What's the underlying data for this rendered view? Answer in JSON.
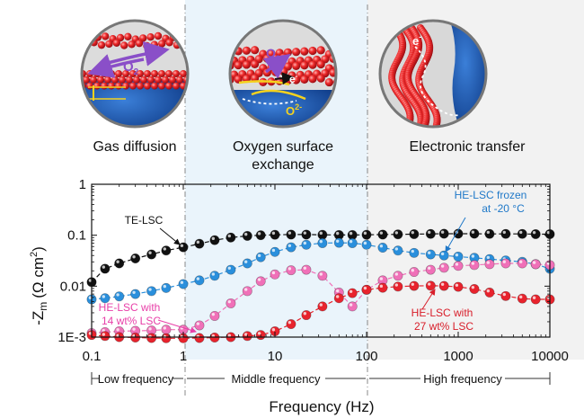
{
  "chart_data": {
    "type": "line",
    "title": "",
    "xlabel": "Frequency (Hz)",
    "ylabel_main": "-Z",
    "ylabel_sub": "m",
    "ylabel_unit_pre": "(Ω cm",
    "ylabel_unit_sup": "2",
    "ylabel_unit_post": ")",
    "xscale": "log",
    "yscale": "log",
    "xlim": [
      0.1,
      10000
    ],
    "ylim": [
      0.001,
      1
    ],
    "x_ticks": [
      {
        "v": 0.1,
        "label": "0.1"
      },
      {
        "v": 1,
        "label": "1"
      },
      {
        "v": 10,
        "label": "10"
      },
      {
        "v": 100,
        "label": "100"
      },
      {
        "v": 1000,
        "label": "1000"
      },
      {
        "v": 10000,
        "label": "10000"
      }
    ],
    "y_ticks": [
      {
        "v": 1,
        "label": "1"
      },
      {
        "v": 0.1,
        "label": "0.1"
      },
      {
        "v": 0.01,
        "label": "0.01"
      },
      {
        "v": 0.001,
        "label": "1E-3"
      }
    ],
    "series": [
      {
        "color": "#111111",
        "x": [
          0.1,
          0.14,
          0.2,
          0.3,
          0.45,
          0.65,
          1,
          1.5,
          2.2,
          3.3,
          5,
          7,
          10,
          15,
          22,
          33,
          50,
          70,
          100,
          150,
          220,
          330,
          500,
          700,
          1000,
          1500,
          2200,
          3300,
          5000,
          7000,
          10000
        ],
        "y": [
          0.012,
          0.022,
          0.028,
          0.035,
          0.042,
          0.05,
          0.058,
          0.068,
          0.08,
          0.09,
          0.097,
          0.1,
          0.102,
          0.103,
          0.103,
          0.102,
          0.101,
          0.101,
          0.102,
          0.103,
          0.104,
          0.105,
          0.106,
          0.107,
          0.107,
          0.107,
          0.106,
          0.106,
          0.106,
          0.105,
          0.105
        ]
      },
      {
        "color": "#2a8fdc",
        "x": [
          0.1,
          0.14,
          0.2,
          0.3,
          0.45,
          0.65,
          1,
          1.5,
          2.2,
          3.3,
          5,
          7,
          10,
          15,
          22,
          33,
          50,
          70,
          100,
          150,
          220,
          330,
          500,
          700,
          1000,
          1500,
          2200,
          3300,
          5000,
          7000,
          10000
        ],
        "y": [
          0.0055,
          0.0058,
          0.0063,
          0.007,
          0.008,
          0.0092,
          0.011,
          0.013,
          0.016,
          0.021,
          0.028,
          0.037,
          0.047,
          0.058,
          0.065,
          0.07,
          0.071,
          0.07,
          0.065,
          0.057,
          0.05,
          0.045,
          0.042,
          0.04,
          0.038,
          0.036,
          0.034,
          0.032,
          0.03,
          0.027,
          0.022
        ]
      },
      {
        "color": "#f070b8",
        "x": [
          0.1,
          0.14,
          0.2,
          0.3,
          0.45,
          0.65,
          1,
          1.5,
          2.2,
          3.3,
          5,
          7,
          10,
          15,
          22,
          33,
          50,
          70,
          100,
          150,
          220,
          330,
          500,
          700,
          1000,
          1500,
          2200,
          3300,
          5000,
          7000,
          10000
        ],
        "y": [
          0.0012,
          0.00125,
          0.0013,
          0.00133,
          0.00135,
          0.0014,
          0.0014,
          0.0017,
          0.0026,
          0.0046,
          0.008,
          0.0125,
          0.017,
          0.0205,
          0.021,
          0.016,
          0.0075,
          0.004,
          0.0085,
          0.013,
          0.016,
          0.019,
          0.021,
          0.023,
          0.025,
          0.026,
          0.027,
          0.028,
          0.028,
          0.027,
          0.026
        ]
      },
      {
        "color": "#e8232d",
        "x": [
          0.1,
          0.14,
          0.2,
          0.3,
          0.45,
          0.65,
          1,
          1.5,
          2.2,
          3.3,
          5,
          7,
          10,
          15,
          22,
          33,
          50,
          70,
          100,
          150,
          220,
          330,
          500,
          700,
          1000,
          1500,
          2200,
          3300,
          5000,
          7000,
          10000
        ],
        "y": [
          0.0011,
          0.00105,
          0.001,
          0.00098,
          0.00096,
          0.00095,
          0.00095,
          0.00096,
          0.00098,
          0.001,
          0.00105,
          0.0011,
          0.0013,
          0.0018,
          0.0027,
          0.004,
          0.0058,
          0.0073,
          0.0085,
          0.0093,
          0.0098,
          0.0101,
          0.0102,
          0.0101,
          0.0097,
          0.0088,
          0.0075,
          0.0064,
          0.0057,
          0.0055,
          0.0055
        ]
      }
    ],
    "annotations": [
      {
        "lines": [
          "TE-LSC"
        ],
        "color": "#111111"
      },
      {
        "lines": [
          "HE-LSC frozen",
          "at -20 °C"
        ],
        "color": "#1f78c8"
      },
      {
        "lines": [
          "HE-LSC with",
          "14 wt% LSC"
        ],
        "color": "#e83fa8"
      },
      {
        "lines": [
          "HE-LSC with",
          "27 wt% LSC"
        ],
        "color": "#d81e2a"
      }
    ],
    "regions": [
      {
        "label": "Low frequency",
        "from": 0.1,
        "to": 1
      },
      {
        "label": "Middle frequency",
        "from": 1,
        "to": 100
      },
      {
        "label": "High frequency",
        "from": 100,
        "to": 10000
      }
    ],
    "panel_labels": [
      {
        "lines": [
          "Gas diffusion"
        ]
      },
      {
        "lines": [
          "Oxygen surface",
          "exchange"
        ]
      },
      {
        "lines": [
          "Electronic transfer"
        ]
      }
    ],
    "inset_labels": {
      "o2_left": "O",
      "o2_left_sub": "2",
      "o2_mid": "O",
      "o2_mid_sub": "2",
      "electron_mid": "e",
      "electron_mid_sup": "-",
      "oxide_ion": "O",
      "oxide_ion_sup": "2-",
      "electron_right": "e",
      "electron_right_sup": "-"
    },
    "colors": {
      "middle_band": "#eaf4fb",
      "high_band": "#f2f2f2",
      "particle": "#e8232d",
      "electrolyte": "#1d56a8",
      "arrow_purple": "#8a4fc8",
      "path_yellow": "#f5d21e"
    }
  }
}
